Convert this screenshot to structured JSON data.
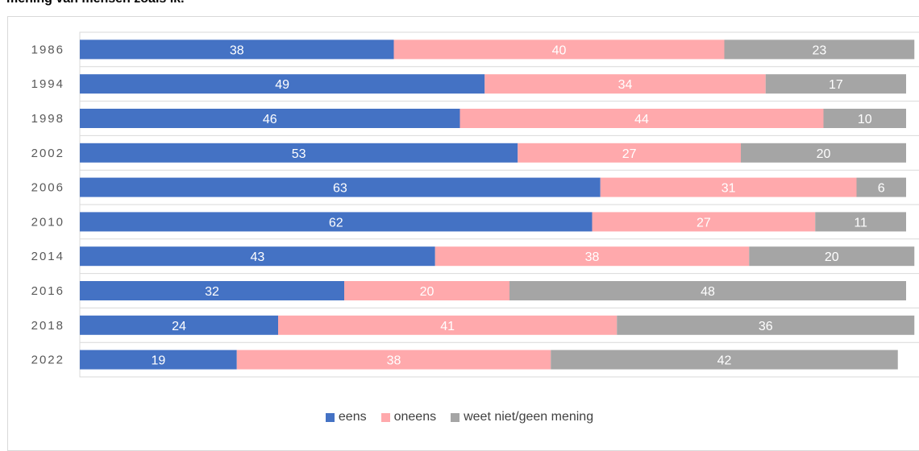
{
  "page": {
    "title_fragment": "mening van mensen zoals ik."
  },
  "colors": {
    "eens": "#4472C4",
    "oneens": "#FFA9AC",
    "weet_niet": "#A5A5A5"
  },
  "chart_data": {
    "type": "bar",
    "orientation": "horizontal",
    "stacked": true,
    "categories": [
      "1986",
      "1994",
      "1998",
      "2002",
      "2006",
      "2010",
      "2014",
      "2016",
      "2018",
      "2022"
    ],
    "series": [
      {
        "name": "eens",
        "color": "#4472C4",
        "values": [
          38,
          49,
          46,
          53,
          63,
          62,
          43,
          32,
          24,
          19
        ]
      },
      {
        "name": "oneens",
        "color": "#FFA9AC",
        "values": [
          40,
          34,
          44,
          27,
          31,
          27,
          38,
          20,
          41,
          38
        ]
      },
      {
        "name": "weet niet/geen mening",
        "color": "#A5A5A5",
        "values": [
          23,
          17,
          10,
          20,
          6,
          11,
          20,
          48,
          36,
          42
        ]
      }
    ],
    "legend_position": "bottom",
    "grid": true
  }
}
